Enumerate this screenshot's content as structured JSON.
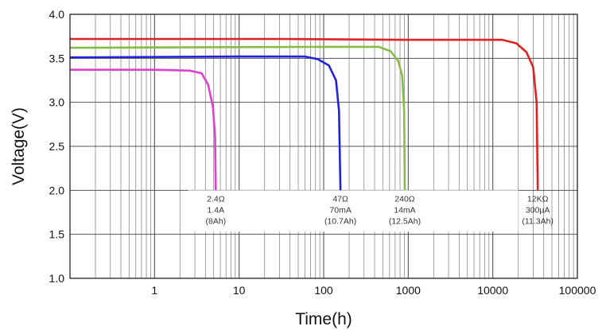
{
  "chart_data": {
    "type": "line",
    "title": "",
    "xlabel": "Time(h)",
    "ylabel": "Voltage(V)",
    "x_scale": "log",
    "xlim": [
      0.1,
      100000
    ],
    "ylim": [
      1.0,
      4.0
    ],
    "grid": true,
    "x_ticks": [
      {
        "value": 1,
        "label": "1"
      },
      {
        "value": 10,
        "label": "10"
      },
      {
        "value": 100,
        "label": "100"
      },
      {
        "value": 1000,
        "label": "1000"
      },
      {
        "value": 10000,
        "label": "10000"
      },
      {
        "value": 100000,
        "label": "100000"
      }
    ],
    "y_ticks": [
      {
        "value": 1.0,
        "label": "1.0"
      },
      {
        "value": 1.5,
        "label": "1.5"
      },
      {
        "value": 2.0,
        "label": "2.0"
      },
      {
        "value": 2.5,
        "label": "2.5"
      },
      {
        "value": 3.0,
        "label": "3.0"
      },
      {
        "value": 3.5,
        "label": "3.5"
      },
      {
        "value": 4.0,
        "label": "4.0"
      }
    ],
    "series": [
      {
        "color": "#e040d0",
        "points": [
          [
            0.1,
            3.37
          ],
          [
            1,
            3.37
          ],
          [
            2.6,
            3.36
          ],
          [
            3.6,
            3.33
          ],
          [
            4.3,
            3.2
          ],
          [
            4.9,
            2.95
          ],
          [
            5.2,
            2.6
          ],
          [
            5.3,
            2.0
          ]
        ],
        "annotation": [
          "2.4Ω",
          "1.4A",
          "(8Ah)"
        ]
      },
      {
        "color": "#2222dd",
        "points": [
          [
            0.1,
            3.51
          ],
          [
            10,
            3.52
          ],
          [
            60,
            3.52
          ],
          [
            85,
            3.49
          ],
          [
            115,
            3.42
          ],
          [
            140,
            3.25
          ],
          [
            152,
            2.9
          ],
          [
            158,
            2.0
          ]
        ],
        "annotation": [
          "47Ω",
          "70mA",
          "(10.7Ah)"
        ]
      },
      {
        "color": "#88bb44",
        "points": [
          [
            0.1,
            3.62
          ],
          [
            100,
            3.63
          ],
          [
            450,
            3.63
          ],
          [
            620,
            3.58
          ],
          [
            760,
            3.47
          ],
          [
            850,
            3.3
          ],
          [
            895,
            2.9
          ],
          [
            910,
            2.0
          ]
        ],
        "annotation": [
          "240Ω",
          "14mA",
          "(12.5Ah)"
        ]
      },
      {
        "color": "#dd2222",
        "points": [
          [
            0.1,
            3.72
          ],
          [
            30,
            3.72
          ],
          [
            1000,
            3.71
          ],
          [
            13000,
            3.71
          ],
          [
            19000,
            3.67
          ],
          [
            25000,
            3.57
          ],
          [
            30000,
            3.4
          ],
          [
            33000,
            3.0
          ],
          [
            34000,
            2.0
          ]
        ],
        "annotation": [
          "12KΩ",
          "300µA",
          "(11.3Ah)"
        ]
      }
    ]
  }
}
